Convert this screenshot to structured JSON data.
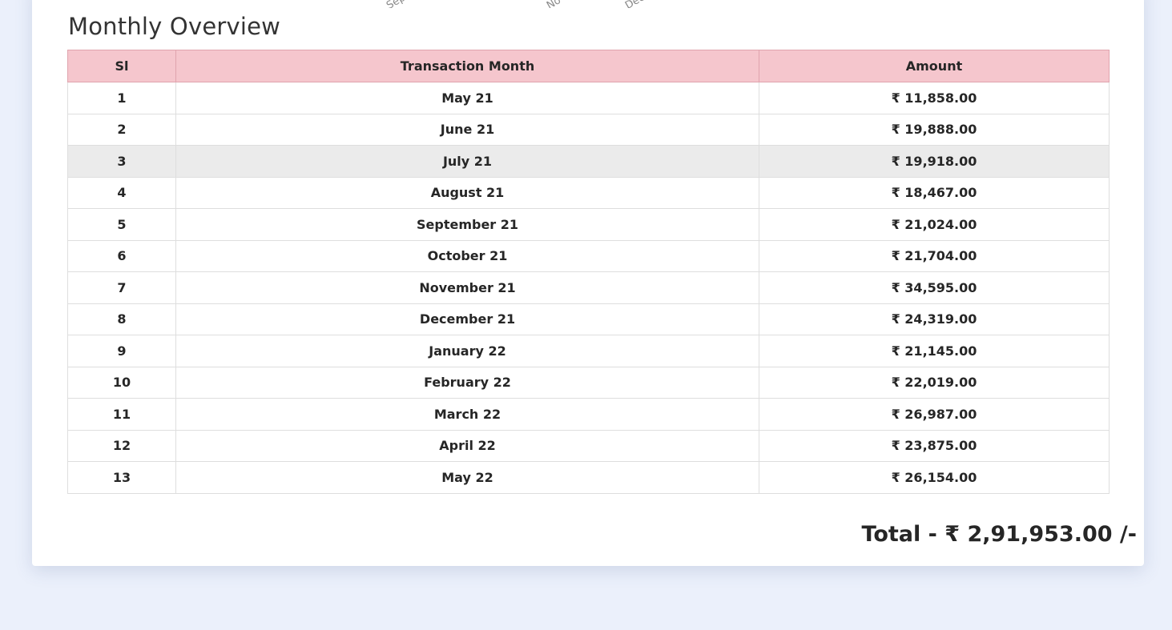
{
  "section_title": "Monthly Overview",
  "chart_axis_fragments": [
    "Sep",
    "No",
    "Dec"
  ],
  "table": {
    "headers": {
      "sl": "Sl",
      "month": "Transaction Month",
      "amount": "Amount"
    },
    "rows": [
      {
        "sl": "1",
        "month": "May 21",
        "amount": "₹ 11,858.00"
      },
      {
        "sl": "2",
        "month": "June 21",
        "amount": "₹ 19,888.00"
      },
      {
        "sl": "3",
        "month": "July 21",
        "amount": "₹ 19,918.00"
      },
      {
        "sl": "4",
        "month": "August 21",
        "amount": "₹ 18,467.00"
      },
      {
        "sl": "5",
        "month": "September 21",
        "amount": "₹ 21,024.00"
      },
      {
        "sl": "6",
        "month": "October 21",
        "amount": "₹ 21,704.00"
      },
      {
        "sl": "7",
        "month": "November 21",
        "amount": "₹ 34,595.00"
      },
      {
        "sl": "8",
        "month": "December 21",
        "amount": "₹ 24,319.00"
      },
      {
        "sl": "9",
        "month": "January 22",
        "amount": "₹ 21,145.00"
      },
      {
        "sl": "10",
        "month": "February 22",
        "amount": "₹ 22,019.00"
      },
      {
        "sl": "11",
        "month": "March 22",
        "amount": "₹ 26,987.00"
      },
      {
        "sl": "12",
        "month": "April 22",
        "amount": "₹ 23,875.00"
      },
      {
        "sl": "13",
        "month": "May 22",
        "amount": "₹ 26,154.00"
      }
    ]
  },
  "total_text": "Total - ₹ 2,91,953.00 /-",
  "colors": {
    "page_background": "#ebf0fb",
    "header_fill": "#f5c6cd",
    "highlight_row": "#ebebeb"
  }
}
